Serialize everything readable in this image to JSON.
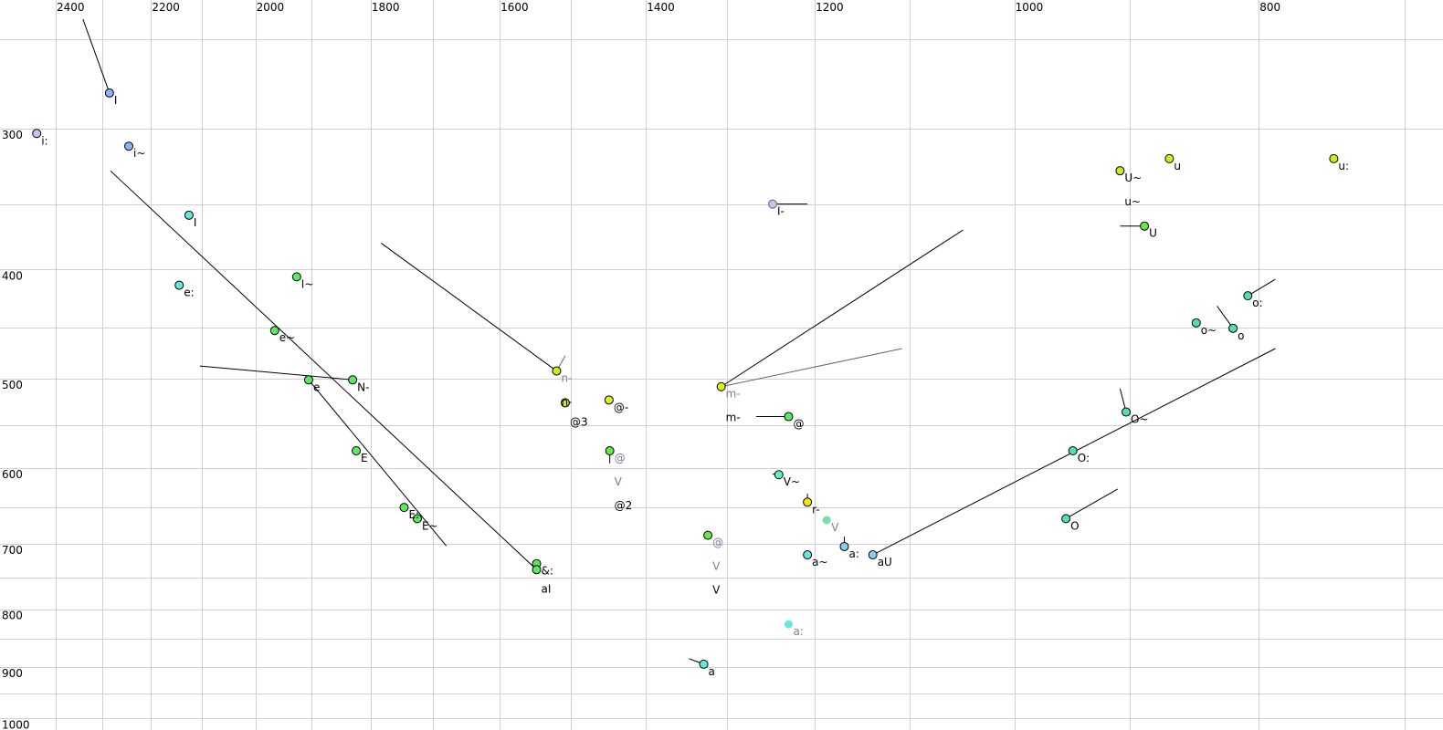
{
  "chart_data": {
    "type": "scatter",
    "title": "",
    "xlabel": "",
    "ylabel": "",
    "x_axis": {
      "quantity": "F2",
      "scale": "log",
      "reversed": true,
      "range": [
        2445,
        690
      ],
      "grid_step": 100,
      "tick_labels": [
        "2400",
        "2200",
        "2000",
        "1800",
        "1600",
        "1400",
        "1200",
        "1000",
        "800"
      ],
      "position": "top"
    },
    "y_axis": {
      "quantity": "F1",
      "scale": "log",
      "reversed": false,
      "range": [
        250,
        1010
      ],
      "grid_step": 50,
      "tick_labels": [
        "300",
        "400",
        "500",
        "600",
        "700",
        "800",
        "900",
        "1000"
      ],
      "position": "left"
    },
    "grid": true,
    "colors": {
      "grid": "#d0d0d0",
      "line": "#000000",
      "grey_line": "#666666",
      "grey_label": "#7a7a9a"
    },
    "points": [
      {
        "f2": 2285,
        "f1": 279,
        "color": "#86b4f4",
        "labels": [
          {
            "text": "I"
          }
        ],
        "lines": [
          {
            "to": [
              2341,
              240
            ]
          }
        ]
      },
      {
        "f2": 2442,
        "f1": 303,
        "color": "#c4c4f2",
        "labels": [
          {
            "text": "i:"
          }
        ]
      },
      {
        "f2": 2245,
        "f1": 311,
        "color": "#86b4f4",
        "labels": [
          {
            "text": "i~"
          }
        ]
      },
      {
        "f2": 2125,
        "f1": 358,
        "color": "#66e8d8",
        "labels": [
          {
            "text": "I"
          }
        ]
      },
      {
        "f2": 2144,
        "f1": 413,
        "color": "#66e8d8",
        "labels": [
          {
            "text": "e:"
          }
        ]
      },
      {
        "f2": 1926,
        "f1": 406,
        "color": "#5ee85e",
        "labels": [
          {
            "text": "I~"
          }
        ]
      },
      {
        "f2": 1965,
        "f1": 453,
        "color": "#5ee85e",
        "labels": [
          {
            "text": "e~"
          }
        ]
      },
      {
        "f2": 1905,
        "f1": 501,
        "color": "#5ee85e",
        "labels": [
          {
            "text": "e"
          }
        ],
        "lines": [
          {
            "to": [
              1680,
              703
            ]
          }
        ]
      },
      {
        "f2": 1830,
        "f1": 501,
        "color": "#5ee85e",
        "labels": [
          {
            "text": "N-"
          }
        ],
        "lines": [
          {
            "to": [
              2104,
              487
            ]
          }
        ]
      },
      {
        "f2": 1824,
        "f1": 579,
        "color": "#5ee85e",
        "labels": [
          {
            "text": "E"
          }
        ]
      },
      {
        "f2": 1746,
        "f1": 650,
        "color": "#5ee85e",
        "labels": [
          {
            "text": "E:"
          }
        ]
      },
      {
        "f2": 1725,
        "f1": 665,
        "color": "#5ee85e",
        "labels": [
          {
            "text": "E~"
          }
        ]
      },
      {
        "f2": 1547,
        "f1": 729,
        "color": "#5ee85e",
        "labels": [
          {
            "text": "&:"
          }
        ]
      },
      {
        "f2": 1547,
        "f1": 738,
        "color": "#5ee85e",
        "labels": [
          {
            "text": "aI"
          }
        ],
        "lines": [
          {
            "to": [
              2283,
              327
            ]
          }
        ]
      },
      {
        "f2": 1519,
        "f1": 492,
        "color": "#c8f020",
        "labels": [
          {
            "text": "n-",
            "grey": true
          },
          {
            "text": "n-"
          }
        ],
        "lines": [
          {
            "to": [
              1783,
              379
            ]
          },
          {
            "to": [
              1507,
              477
            ],
            "grey": true
          }
        ]
      },
      {
        "f2": 1507,
        "f1": 525,
        "color": "#c8f020",
        "labels": [
          {
            "text": "@3"
          }
        ]
      },
      {
        "f2": 1448,
        "f1": 522,
        "color": "#dcf020",
        "labels": [
          {
            "text": "@-"
          }
        ]
      },
      {
        "f2": 1447,
        "f1": 579,
        "color": "#66e844",
        "labels": [
          {
            "text": "@",
            "grey": true
          },
          {
            "text": "V",
            "grey": true
          },
          {
            "text": "@2"
          }
        ],
        "lines": [
          {
            "to": [
              1447,
              594
            ]
          }
        ]
      },
      {
        "f2": 1323,
        "f1": 688,
        "color": "#66e844",
        "labels": [
          {
            "text": "@",
            "grey": true
          },
          {
            "text": "V",
            "grey": true
          },
          {
            "text": "V"
          }
        ]
      },
      {
        "f2": 1307,
        "f1": 508,
        "color": "#dcf020",
        "labels": [
          {
            "text": "m-",
            "grey": true
          },
          {
            "text": "m-"
          }
        ],
        "lines": [
          {
            "to": [
              1048,
              369
            ]
          },
          {
            "to": [
              1108,
              470
            ],
            "grey": true
          }
        ]
      },
      {
        "f2": 1247,
        "f1": 350,
        "color": "#c4c4f2",
        "outline": "#666666",
        "labels": [
          {
            "text": "I-"
          }
        ],
        "lines": [
          {
            "to": [
              1208,
              350
            ]
          }
        ]
      },
      {
        "f2": 1229,
        "f1": 540,
        "color": "#5ee85e",
        "labels": [
          {
            "text": "@"
          }
        ],
        "lines": [
          {
            "to": [
              1266,
              540
            ]
          }
        ]
      },
      {
        "f2": 1240,
        "f1": 608,
        "color": "#66eebb",
        "labels": [
          {
            "text": "V~"
          }
        ],
        "lines": [
          {
            "to": [
              1247,
              607
            ]
          }
        ]
      },
      {
        "f2": 1208,
        "f1": 643,
        "color": "#f0e800",
        "labels": [
          {
            "text": "r-"
          }
        ],
        "lines": [
          {
            "to": [
              1208,
              632
            ]
          }
        ]
      },
      {
        "f2": 1187,
        "f1": 667,
        "color": "#77e0aa",
        "outline": "none",
        "labels": [
          {
            "text": "V",
            "grey": true
          }
        ]
      },
      {
        "f2": 1208,
        "f1": 716,
        "color": "#66e8d8",
        "labels": [
          {
            "text": "a~"
          }
        ]
      },
      {
        "f2": 1168,
        "f1": 704,
        "color": "#88ccf0",
        "labels": [
          {
            "text": "a:"
          }
        ],
        "lines": [
          {
            "to": [
              1168,
              690
            ]
          }
        ]
      },
      {
        "f2": 1138,
        "f1": 716,
        "color": "#88ccf0",
        "labels": [
          {
            "text": "aU"
          }
        ],
        "lines": [
          {
            "to": [
              788,
              470
            ]
          }
        ]
      },
      {
        "f2": 1229,
        "f1": 825,
        "color": "#66e8d8",
        "outline": "none",
        "labels": [
          {
            "text": "a:",
            "grey": true
          }
        ]
      },
      {
        "f2": 1328,
        "f1": 895,
        "color": "#66e8d8",
        "labels": [
          {
            "text": "a"
          }
        ],
        "lines": [
          {
            "to": [
              1346,
              885
            ]
          }
        ]
      },
      {
        "f2": 948,
        "f1": 579,
        "color": "#55e0aa",
        "labels": [
          {
            "text": "O:"
          }
        ]
      },
      {
        "f2": 903,
        "f1": 535,
        "color": "#55e0aa",
        "labels": [
          {
            "text": "O~"
          }
        ],
        "lines": [
          {
            "to": [
              908,
              510
            ]
          }
        ]
      },
      {
        "f2": 954,
        "f1": 665,
        "color": "#55e0aa",
        "labels": [
          {
            "text": "O"
          }
        ],
        "lines": [
          {
            "to": [
              910,
              626
            ]
          }
        ]
      },
      {
        "f2": 908,
        "f1": 327,
        "color": "#c8f020",
        "labels": [
          {
            "text": "U~"
          },
          {
            "text": "u~"
          }
        ]
      },
      {
        "f2": 868,
        "f1": 319,
        "color": "#c8f020",
        "labels": [
          {
            "text": "u"
          }
        ]
      },
      {
        "f2": 747,
        "f1": 319,
        "color": "#c8f020",
        "labels": [
          {
            "text": "u:"
          }
        ]
      },
      {
        "f2": 888,
        "f1": 366,
        "color": "#66e844",
        "labels": [
          {
            "text": "U"
          }
        ],
        "lines": [
          {
            "to": [
              908,
              366
            ]
          }
        ]
      },
      {
        "f2": 808,
        "f1": 422,
        "color": "#55e0aa",
        "labels": [
          {
            "text": "o:"
          }
        ],
        "lines": [
          {
            "to": [
              788,
              408
            ]
          }
        ]
      },
      {
        "f2": 847,
        "f1": 446,
        "color": "#55e0aa",
        "labels": [
          {
            "text": "o~"
          }
        ]
      },
      {
        "f2": 819,
        "f1": 451,
        "color": "#55e0aa",
        "labels": [
          {
            "text": "o"
          }
        ],
        "lines": [
          {
            "to": [
              831,
              431
            ]
          }
        ]
      }
    ]
  }
}
